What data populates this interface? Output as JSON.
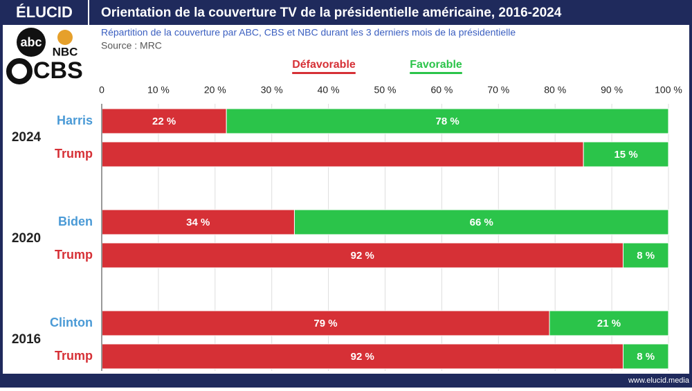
{
  "brand": "ÉLUCID",
  "logos": [
    "abc",
    "NBC",
    "CBS"
  ],
  "footer": "www.elucid.media",
  "chart_data": {
    "type": "stacked-bar-horizontal",
    "title": "Orientation de la couverture TV de la présidentielle américaine, 2016-2024",
    "subtitle": "Répartition de la couverture par ABC, CBS et NBC durant les 3 derniers mois de la présidentielle",
    "source": "Source :  MRC",
    "groups": [
      "2024",
      "2020",
      "2016"
    ],
    "categories": [
      "Harris",
      "Trump",
      "Biden",
      "Trump",
      "Clinton",
      "Trump"
    ],
    "category_colors": [
      "#4a9ad6",
      "#d63036",
      "#4a9ad6",
      "#d63036",
      "#4a9ad6",
      "#d63036"
    ],
    "series": [
      {
        "name": "Défavorable",
        "color": "#d63036",
        "values": [
          22,
          85,
          34,
          92,
          79,
          92
        ],
        "value_labels": [
          "22 %",
          null,
          "34 %",
          "92 %",
          "79 %",
          "92 %"
        ]
      },
      {
        "name": "Favorable",
        "color": "#2bc44a",
        "values": [
          78,
          15,
          66,
          8,
          21,
          8
        ],
        "value_labels": [
          "78 %",
          "15 %",
          "66 %",
          "8 %",
          "21 %",
          "8 %"
        ]
      }
    ],
    "xlim": [
      0,
      100
    ],
    "xticks": [
      0,
      {
        "value": 10,
        "label": "10 %"
      },
      {
        "value": 20,
        "label": "20 %"
      },
      {
        "value": 30,
        "label": "30 %"
      },
      {
        "value": 40,
        "label": "40 %"
      },
      {
        "value": 50,
        "label": "50 %"
      },
      {
        "value": 60,
        "label": "60 %"
      },
      {
        "value": 70,
        "label": "70 %"
      },
      {
        "value": 80,
        "label": "80 %"
      },
      {
        "value": 90,
        "label": "90 %"
      },
      {
        "value": 100,
        "label": "100 %"
      }
    ],
    "grid": true,
    "legend": "top"
  }
}
